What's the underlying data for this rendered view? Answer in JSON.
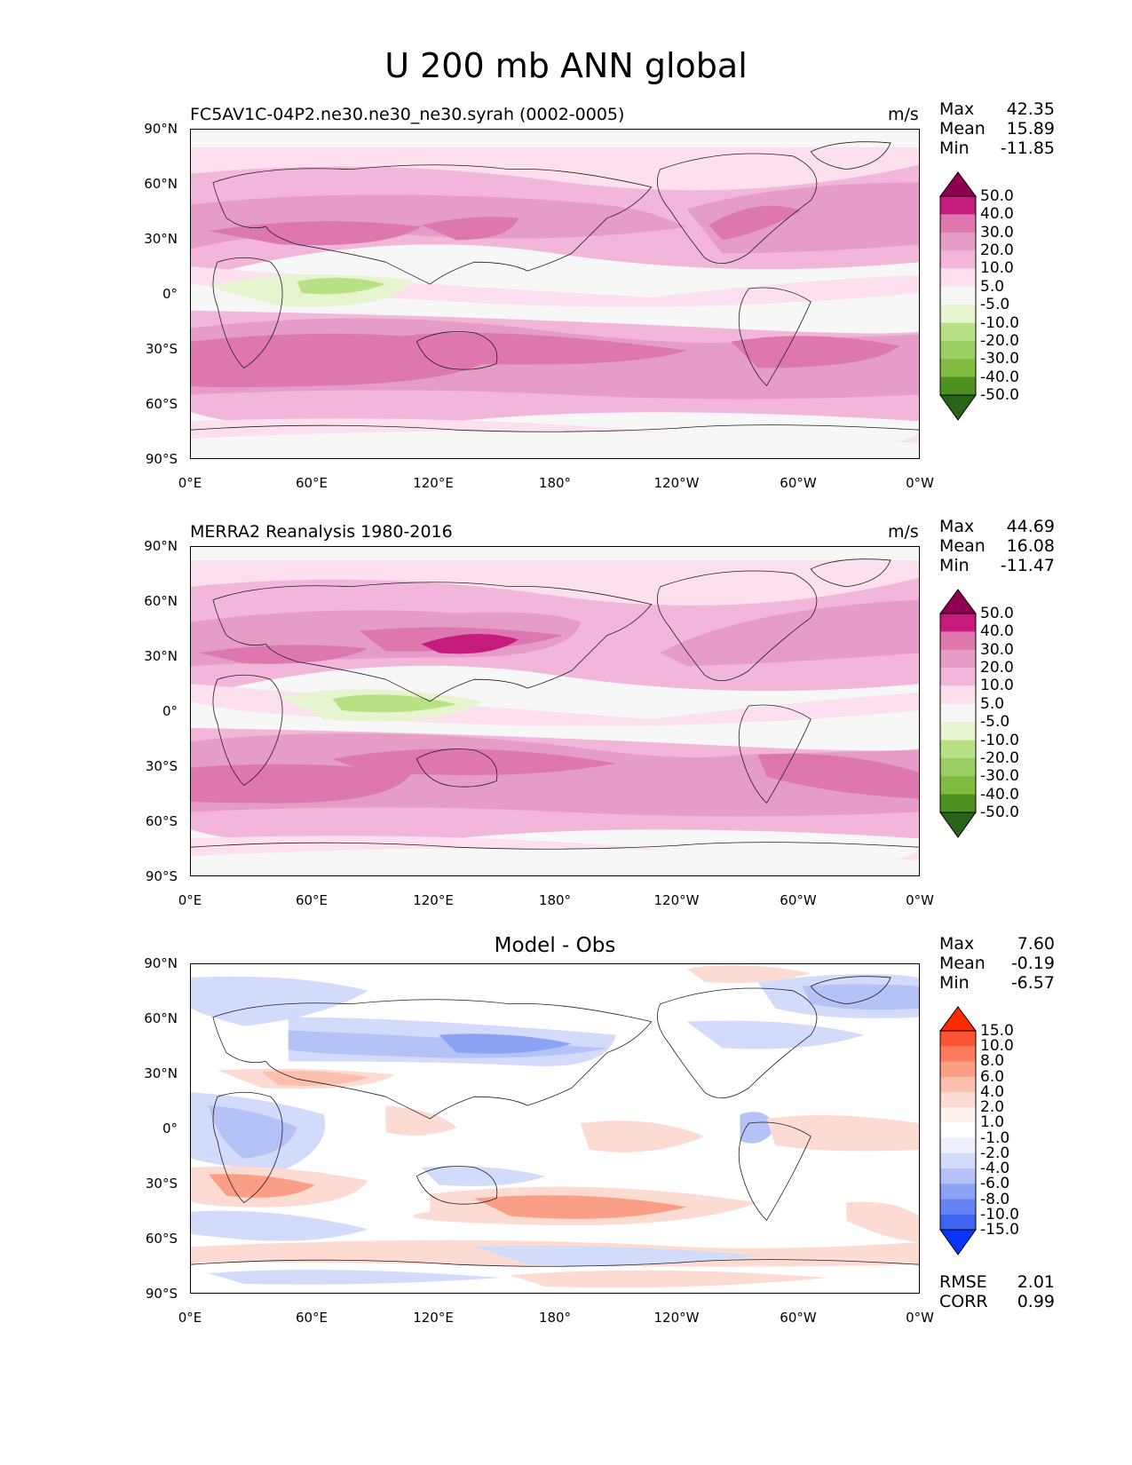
{
  "figure": {
    "title": "U 200 mb ANN global"
  },
  "axes": {
    "yticks": [
      "90°N",
      "60°N",
      "30°N",
      "0°",
      "30°S",
      "60°S",
      "90°S"
    ],
    "xticks": [
      "0°E",
      "60°E",
      "120°E",
      "180°",
      "120°W",
      "60°W",
      "0°W"
    ]
  },
  "panels": [
    {
      "title": "FC5AV1C-04P2.ne30.ne30_ne30.syrah (0002-0005)",
      "units": "m/s",
      "stats": [
        {
          "label": "Max",
          "value": "42.35"
        },
        {
          "label": "Mean",
          "value": "15.89"
        },
        {
          "label": "Min",
          "value": "-11.85"
        }
      ],
      "colorbar": "pg"
    },
    {
      "title": "MERRA2 Reanalysis 1980-2016",
      "units": "m/s",
      "stats": [
        {
          "label": "Max",
          "value": "44.69"
        },
        {
          "label": "Mean",
          "value": "16.08"
        },
        {
          "label": "Min",
          "value": "-11.47"
        }
      ],
      "colorbar": "pg"
    },
    {
      "title": "Model - Obs",
      "units": "",
      "stats": [
        {
          "label": "Max",
          "value": "7.60"
        },
        {
          "label": "Mean",
          "value": "-0.19"
        },
        {
          "label": "Min",
          "value": "-6.57"
        }
      ],
      "colorbar": "rb",
      "extra_stats": [
        {
          "label": "RMSE",
          "value": "2.01"
        },
        {
          "label": "CORR",
          "value": "0.99"
        }
      ]
    }
  ],
  "colorbars": {
    "pg": {
      "labels": [
        "50.0",
        "40.0",
        "30.0",
        "20.0",
        "10.0",
        "5.0",
        "-5.0",
        "-10.0",
        "-20.0",
        "-30.0",
        "-40.0",
        "-50.0"
      ],
      "colors": [
        "#8e0152",
        "#c51b7d",
        "#de77ae",
        "#e59cc6",
        "#f1b6da",
        "#fde0ef",
        "#f7f7f7",
        "#e6f5d0",
        "#b8e186",
        "#9bcf63",
        "#7fbc41",
        "#4d9221",
        "#276419"
      ]
    },
    "rb": {
      "labels": [
        "15.0",
        "10.0",
        "8.0",
        "6.0",
        "4.0",
        "2.0",
        "1.0",
        "-1.0",
        "-2.0",
        "-4.0",
        "-6.0",
        "-8.0",
        "-10.0",
        "-15.0"
      ],
      "colors": [
        "#ff2a00",
        "#fb5536",
        "#fd7a5c",
        "#fb9e86",
        "#fdbfad",
        "#fcdcd2",
        "#fff1ec",
        "#ffffff",
        "#eef0fd",
        "#d3dbfb",
        "#b4c2f8",
        "#8ca2f4",
        "#6683f2",
        "#3f63f1",
        "#0a35fb"
      ]
    }
  }
}
